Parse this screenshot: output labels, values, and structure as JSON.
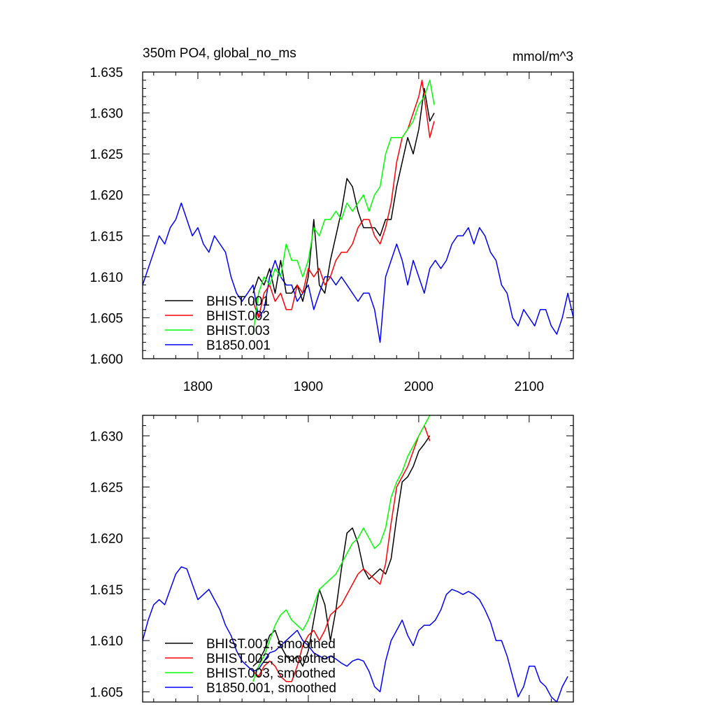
{
  "chart_data": [
    {
      "type": "line",
      "title": "350m PO4, global_no_ms",
      "units": "mmol/m^3",
      "xlim": [
        1750,
        2140
      ],
      "ylim": [
        1.6,
        1.635
      ],
      "x_ticks": [
        1800,
        1900,
        2000,
        2100
      ],
      "x_tick_labels": [
        "1800",
        "1900",
        "2000",
        "2100"
      ],
      "y_ticks": [
        1.6,
        1.605,
        1.61,
        1.615,
        1.62,
        1.625,
        1.63,
        1.635
      ],
      "y_tick_labels": [
        "1.600",
        "1.605",
        "1.610",
        "1.615",
        "1.620",
        "1.625",
        "1.630",
        "1.635"
      ],
      "legend_position": "bottom-left",
      "series": [
        {
          "name": "BHIST.001",
          "color": "#000000",
          "x": [
            1850,
            1855,
            1860,
            1865,
            1870,
            1875,
            1880,
            1885,
            1890,
            1895,
            1900,
            1905,
            1910,
            1915,
            1920,
            1925,
            1930,
            1935,
            1940,
            1945,
            1950,
            1955,
            1960,
            1965,
            1970,
            1975,
            1980,
            1985,
            1990,
            1995,
            2000,
            2005,
            2010,
            2014
          ],
          "y": [
            1.608,
            1.61,
            1.609,
            1.611,
            1.608,
            1.612,
            1.608,
            1.608,
            1.609,
            1.607,
            1.61,
            1.617,
            1.609,
            1.608,
            1.612,
            1.615,
            1.618,
            1.622,
            1.621,
            1.618,
            1.616,
            1.616,
            1.616,
            1.615,
            1.617,
            1.617,
            1.621,
            1.624,
            1.627,
            1.625,
            1.628,
            1.633,
            1.629,
            1.63
          ]
        },
        {
          "name": "BHIST.002",
          "color": "#ff0000",
          "x": [
            1850,
            1855,
            1860,
            1865,
            1870,
            1875,
            1880,
            1885,
            1890,
            1895,
            1900,
            1905,
            1910,
            1915,
            1920,
            1925,
            1930,
            1935,
            1940,
            1945,
            1950,
            1955,
            1960,
            1965,
            1970,
            1975,
            1980,
            1985,
            1990,
            1995,
            2000,
            2003,
            2006,
            2010,
            2014
          ],
          "y": [
            1.607,
            1.605,
            1.608,
            1.609,
            1.607,
            1.608,
            1.606,
            1.606,
            1.609,
            1.608,
            1.611,
            1.61,
            1.611,
            1.609,
            1.61,
            1.612,
            1.613,
            1.613,
            1.614,
            1.616,
            1.617,
            1.617,
            1.615,
            1.614,
            1.616,
            1.619,
            1.624,
            1.627,
            1.628,
            1.63,
            1.632,
            1.634,
            1.631,
            1.627,
            1.629
          ]
        },
        {
          "name": "BHIST.003",
          "color": "#00ff00",
          "x": [
            1850,
            1855,
            1860,
            1865,
            1870,
            1875,
            1880,
            1885,
            1890,
            1895,
            1900,
            1905,
            1910,
            1915,
            1920,
            1925,
            1930,
            1935,
            1940,
            1945,
            1950,
            1955,
            1960,
            1965,
            1970,
            1975,
            1980,
            1985,
            1990,
            1995,
            2000,
            2005,
            2010,
            2014
          ],
          "y": [
            1.603,
            1.608,
            1.61,
            1.609,
            1.611,
            1.61,
            1.614,
            1.612,
            1.612,
            1.61,
            1.612,
            1.616,
            1.615,
            1.617,
            1.617,
            1.618,
            1.617,
            1.619,
            1.618,
            1.619,
            1.62,
            1.618,
            1.62,
            1.621,
            1.625,
            1.627,
            1.627,
            1.627,
            1.628,
            1.629,
            1.631,
            1.632,
            1.634,
            1.631
          ]
        },
        {
          "name": "B1850.001",
          "color": "#0000ff",
          "x": [
            1750,
            1755,
            1760,
            1765,
            1770,
            1775,
            1780,
            1785,
            1790,
            1795,
            1800,
            1805,
            1810,
            1815,
            1820,
            1825,
            1830,
            1835,
            1840,
            1845,
            1850,
            1855,
            1860,
            1865,
            1870,
            1875,
            1880,
            1885,
            1890,
            1895,
            1900,
            1905,
            1910,
            1915,
            1920,
            1925,
            1930,
            1935,
            1940,
            1945,
            1950,
            1955,
            1960,
            1965,
            1970,
            1975,
            1980,
            1985,
            1990,
            1995,
            2000,
            2005,
            2010,
            2015,
            2020,
            2025,
            2030,
            2035,
            2040,
            2045,
            2050,
            2055,
            2060,
            2065,
            2070,
            2075,
            2080,
            2085,
            2090,
            2095,
            2100,
            2105,
            2110,
            2115,
            2120,
            2125,
            2130,
            2135,
            2140
          ],
          "y": [
            1.609,
            1.611,
            1.613,
            1.615,
            1.614,
            1.616,
            1.617,
            1.619,
            1.617,
            1.615,
            1.616,
            1.614,
            1.613,
            1.615,
            1.614,
            1.613,
            1.61,
            1.608,
            1.607,
            1.608,
            1.609,
            1.605,
            1.606,
            1.61,
            1.612,
            1.61,
            1.609,
            1.609,
            1.607,
            1.608,
            1.609,
            1.606,
            1.608,
            1.61,
            1.61,
            1.609,
            1.61,
            1.609,
            1.608,
            1.607,
            1.608,
            1.608,
            1.606,
            1.602,
            1.61,
            1.612,
            1.614,
            1.612,
            1.609,
            1.612,
            1.61,
            1.608,
            1.611,
            1.612,
            1.611,
            1.612,
            1.614,
            1.615,
            1.615,
            1.616,
            1.614,
            1.616,
            1.615,
            1.613,
            1.612,
            1.609,
            1.608,
            1.605,
            1.604,
            1.606,
            1.605,
            1.604,
            1.606,
            1.606,
            1.604,
            1.603,
            1.605,
            1.608,
            1.605
          ]
        }
      ]
    },
    {
      "type": "line",
      "xlim": [
        1750,
        2140
      ],
      "ylim": [
        1.604,
        1.632
      ],
      "x_ticks": [
        1800,
        1900,
        2000,
        2100
      ],
      "y_ticks": [
        1.605,
        1.61,
        1.615,
        1.62,
        1.625,
        1.63
      ],
      "y_tick_labels": [
        "1.605",
        "1.610",
        "1.615",
        "1.620",
        "1.625",
        "1.630"
      ],
      "legend_position": "bottom-left",
      "series": [
        {
          "name": "BHIST.001, smoothed",
          "color": "#000000",
          "x": [
            1850,
            1855,
            1860,
            1865,
            1870,
            1875,
            1880,
            1885,
            1890,
            1895,
            1900,
            1905,
            1910,
            1915,
            1920,
            1925,
            1930,
            1935,
            1940,
            1945,
            1950,
            1955,
            1960,
            1965,
            1970,
            1975,
            1980,
            1985,
            1990,
            1995,
            2000,
            2005,
            2010
          ],
          "y": [
            1.6075,
            1.608,
            1.609,
            1.6105,
            1.611,
            1.6095,
            1.6085,
            1.608,
            1.6085,
            1.6075,
            1.609,
            1.612,
            1.615,
            1.6135,
            1.61,
            1.613,
            1.617,
            1.6205,
            1.621,
            1.6195,
            1.617,
            1.616,
            1.6165,
            1.617,
            1.6165,
            1.618,
            1.622,
            1.6255,
            1.626,
            1.627,
            1.6285,
            1.6292,
            1.63
          ]
        },
        {
          "name": "BHIST.002, smoothed",
          "color": "#ff0000",
          "x": [
            1850,
            1855,
            1860,
            1865,
            1870,
            1875,
            1880,
            1885,
            1890,
            1895,
            1900,
            1905,
            1910,
            1915,
            1920,
            1925,
            1930,
            1935,
            1940,
            1945,
            1950,
            1955,
            1960,
            1965,
            1970,
            1975,
            1980,
            1985,
            1990,
            1995,
            2000,
            2005,
            2010
          ],
          "y": [
            1.607,
            1.6065,
            1.6075,
            1.608,
            1.6075,
            1.6065,
            1.606,
            1.606,
            1.6075,
            1.6095,
            1.6105,
            1.611,
            1.61,
            1.611,
            1.6125,
            1.613,
            1.6135,
            1.6145,
            1.6155,
            1.6165,
            1.617,
            1.6165,
            1.616,
            1.6155,
            1.6175,
            1.6215,
            1.625,
            1.626,
            1.627,
            1.6285,
            1.63,
            1.631,
            1.6295
          ]
        },
        {
          "name": "BHIST.003, smoothed",
          "color": "#00ff00",
          "x": [
            1850,
            1855,
            1860,
            1865,
            1870,
            1875,
            1880,
            1885,
            1890,
            1895,
            1900,
            1905,
            1910,
            1915,
            1920,
            1925,
            1930,
            1935,
            1940,
            1945,
            1950,
            1955,
            1960,
            1965,
            1970,
            1975,
            1980,
            1985,
            1990,
            1995,
            2000,
            2005,
            2010
          ],
          "y": [
            1.606,
            1.6075,
            1.6085,
            1.61,
            1.6115,
            1.6125,
            1.613,
            1.612,
            1.6115,
            1.611,
            1.612,
            1.6135,
            1.615,
            1.6155,
            1.616,
            1.6165,
            1.6175,
            1.6185,
            1.6195,
            1.62,
            1.621,
            1.62,
            1.619,
            1.6195,
            1.621,
            1.624,
            1.6255,
            1.6265,
            1.628,
            1.629,
            1.63,
            1.631,
            1.632
          ]
        },
        {
          "name": "B1850.001, smoothed",
          "color": "#0000ff",
          "x": [
            1750,
            1755,
            1760,
            1765,
            1770,
            1775,
            1780,
            1785,
            1790,
            1795,
            1800,
            1805,
            1810,
            1815,
            1820,
            1825,
            1830,
            1835,
            1840,
            1845,
            1850,
            1855,
            1860,
            1865,
            1870,
            1875,
            1880,
            1885,
            1890,
            1895,
            1900,
            1905,
            1910,
            1915,
            1920,
            1925,
            1930,
            1935,
            1940,
            1945,
            1950,
            1955,
            1960,
            1965,
            1970,
            1975,
            1980,
            1985,
            1990,
            1995,
            2000,
            2005,
            2010,
            2015,
            2020,
            2025,
            2030,
            2035,
            2040,
            2045,
            2050,
            2055,
            2060,
            2065,
            2070,
            2075,
            2080,
            2085,
            2090,
            2095,
            2100,
            2105,
            2110,
            2115,
            2120,
            2125,
            2130,
            2135
          ],
          "y": [
            1.61,
            1.612,
            1.6135,
            1.614,
            1.6135,
            1.615,
            1.6165,
            1.6172,
            1.617,
            1.6155,
            1.614,
            1.6145,
            1.615,
            1.614,
            1.613,
            1.6115,
            1.6105,
            1.609,
            1.608,
            1.6075,
            1.607,
            1.6072,
            1.608,
            1.6088,
            1.609,
            1.6095,
            1.61,
            1.6105,
            1.611,
            1.61,
            1.6095,
            1.6088,
            1.6085,
            1.6082,
            1.6085,
            1.6082,
            1.6078,
            1.6075,
            1.608,
            1.6082,
            1.608,
            1.607,
            1.6055,
            1.605,
            1.608,
            1.61,
            1.611,
            1.612,
            1.6105,
            1.6095,
            1.611,
            1.6115,
            1.6115,
            1.612,
            1.613,
            1.6145,
            1.615,
            1.6148,
            1.6145,
            1.6148,
            1.6145,
            1.614,
            1.613,
            1.6118,
            1.61,
            1.61,
            1.6085,
            1.6065,
            1.6045,
            1.6055,
            1.6075,
            1.6075,
            1.606,
            1.6055,
            1.6045,
            1.604,
            1.6055,
            1.6065
          ]
        }
      ]
    }
  ]
}
